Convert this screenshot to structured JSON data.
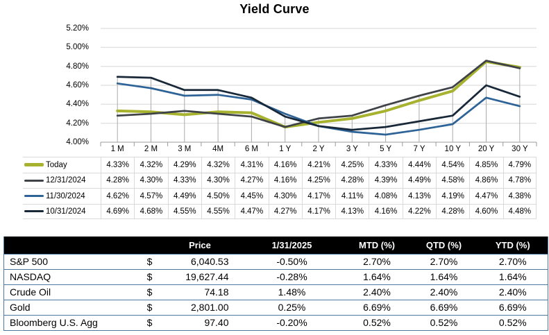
{
  "title": "Yield Curve",
  "colors": {
    "grid": "#D6D6D6",
    "axis": "#9B9B9B",
    "drop_line": "#ABABAB",
    "legend_table_border": "#D9D9D9",
    "market_table_border": "#4B79A1",
    "market_header_bg": "#000000",
    "market_header_text": "#FFFFFF"
  },
  "chart_data": {
    "type": "line",
    "title": "Yield Curve",
    "categories": [
      "1 M",
      "2 M",
      "3 M",
      "4M",
      "6 M",
      "1 Y",
      "2 Y",
      "3 Y",
      "5 Y",
      "7 Y",
      "10 Y",
      "20 Y",
      "30 Y"
    ],
    "y_tick_labels": [
      "5.20%",
      "5.00%",
      "4.80%",
      "4.60%",
      "4.40%",
      "4.20%",
      "4.00%"
    ],
    "ylim": [
      4.0,
      5.2
    ],
    "y_tick_step": 0.2,
    "grid": true,
    "drop_lines": true,
    "legend_position": "data-table-below-chart",
    "value_format": "percent-2dp",
    "series": [
      {
        "key": "today",
        "name": "Today",
        "color": "#A7B22E",
        "values": [
          4.33,
          4.32,
          4.29,
          4.32,
          4.31,
          4.16,
          4.21,
          4.25,
          4.33,
          4.44,
          4.54,
          4.85,
          4.79
        ]
      },
      {
        "key": "dec-31-2024",
        "name": "12/31/2024",
        "color": "#3F4347",
        "values": [
          4.28,
          4.3,
          4.33,
          4.3,
          4.27,
          4.16,
          4.25,
          4.28,
          4.39,
          4.49,
          4.58,
          4.86,
          4.78
        ]
      },
      {
        "key": "nov-30-2024",
        "name": "11/30/2024",
        "color": "#2D6396",
        "values": [
          4.62,
          4.57,
          4.49,
          4.5,
          4.45,
          4.3,
          4.17,
          4.11,
          4.08,
          4.13,
          4.19,
          4.47,
          4.38
        ]
      },
      {
        "key": "oct-31-2024",
        "name": "10/31/2024",
        "color": "#182838",
        "values": [
          4.69,
          4.68,
          4.55,
          4.55,
          4.47,
          4.27,
          4.17,
          4.13,
          4.16,
          4.22,
          4.28,
          4.6,
          4.48
        ]
      }
    ]
  },
  "market_table": {
    "headers": [
      "",
      "",
      "Price",
      "1/31/2025",
      "MTD (%)",
      "QTD (%)",
      "YTD (%)"
    ],
    "rows": [
      [
        "S&P 500",
        "$",
        "6,040.53",
        "-0.50%",
        "2.70%",
        "2.70%",
        "2.70%"
      ],
      [
        "NASDAQ",
        "$",
        "19,627.44",
        "-0.28%",
        "1.64%",
        "1.64%",
        "1.64%"
      ],
      [
        "Crude Oil",
        "$",
        "74.18",
        "1.48%",
        "2.40%",
        "2.40%",
        "2.40%"
      ],
      [
        "Gold",
        "$",
        "2,801.00",
        "0.25%",
        "6.69%",
        "6.69%",
        "6.69%"
      ],
      [
        "Bloomberg U.S. Agg",
        "$",
        "97.40",
        "-0.20%",
        "0.52%",
        "0.52%",
        "0.52%"
      ]
    ]
  }
}
